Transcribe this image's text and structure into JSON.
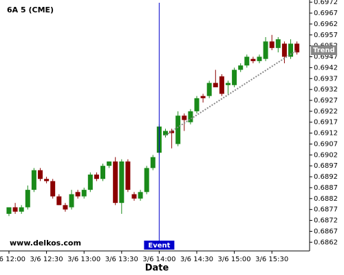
{
  "chart_data": {
    "type": "candlestick",
    "title": "6A 5 (CME)",
    "watermark": "www.delkos.com",
    "x_label": "Date",
    "categories": [
      "3/6 12:00",
      null,
      null,
      null,
      null,
      null,
      "3/6 12:30",
      null,
      null,
      null,
      null,
      null,
      "3/6 13:00",
      null,
      null,
      null,
      null,
      null,
      "3/6 13:30",
      null,
      null,
      null,
      null,
      null,
      "3/6 14:00",
      null,
      null,
      null,
      null,
      null,
      "3/6 14:30",
      null,
      null,
      null,
      null,
      null,
      "3/6 15:00",
      null,
      null,
      null,
      null,
      null,
      "3/6 15:30",
      null,
      null,
      null,
      null
    ],
    "open": [
      0.6875,
      0.6878,
      0.6876,
      0.6878,
      0.6886,
      0.6895,
      0.6891,
      0.689,
      0.6883,
      0.6879,
      0.6878,
      0.6885,
      0.6883,
      0.6886,
      0.6893,
      0.6891,
      0.6897,
      0.6899,
      0.688,
      0.6899,
      0.6884,
      0.6882,
      0.6885,
      0.6896,
      0.6903,
      0.6911,
      0.6913,
      0.6907,
      0.692,
      0.6917,
      0.6922,
      0.6929,
      0.6929,
      0.6935,
      0.6938,
      0.6934,
      0.6934,
      0.6941,
      0.6943,
      0.6946,
      0.6945,
      0.6946,
      0.6954,
      0.6951,
      0.6953,
      0.6947,
      0.6953
    ],
    "high": [
      0.6878,
      0.688,
      0.6879,
      0.6888,
      0.6896,
      0.6896,
      0.6892,
      0.6891,
      0.6884,
      0.688,
      0.6886,
      0.6886,
      0.6887,
      0.6894,
      0.6894,
      0.6898,
      0.6899,
      0.6901,
      0.69,
      0.69,
      0.6885,
      0.6886,
      0.6897,
      0.6902,
      0.6916,
      0.6914,
      0.6914,
      0.6922,
      0.6921,
      0.6923,
      0.6929,
      0.693,
      0.6936,
      0.6941,
      0.6939,
      0.6936,
      0.6942,
      0.6944,
      0.6948,
      0.6947,
      0.6948,
      0.6956,
      0.6957,
      0.6956,
      0.6954,
      0.6955,
      0.6954
    ],
    "low": [
      0.6874,
      0.6875,
      0.6875,
      0.6877,
      0.6885,
      0.689,
      0.6889,
      0.6882,
      0.6879,
      0.6876,
      0.6877,
      0.6882,
      0.6882,
      0.6885,
      0.689,
      0.689,
      0.6896,
      0.6879,
      0.6875,
      0.6885,
      0.6881,
      0.6881,
      0.6884,
      0.6895,
      0.6902,
      0.691,
      0.6905,
      0.6906,
      0.6913,
      0.6916,
      0.6921,
      0.6926,
      0.6928,
      0.6933,
      0.6929,
      0.693,
      0.6933,
      0.694,
      0.6942,
      0.6944,
      0.6944,
      0.6945,
      0.695,
      0.6949,
      0.6944,
      0.6946,
      0.6948
    ],
    "close": [
      0.6878,
      0.6876,
      0.6878,
      0.6886,
      0.6895,
      0.6891,
      0.689,
      0.6883,
      0.6879,
      0.6877,
      0.6884,
      0.6883,
      0.6886,
      0.6893,
      0.6891,
      0.6897,
      0.6899,
      0.688,
      0.6899,
      0.6886,
      0.6882,
      0.6885,
      0.6896,
      0.6901,
      0.6915,
      0.6913,
      0.6912,
      0.692,
      0.6918,
      0.6922,
      0.6928,
      0.6928,
      0.6935,
      0.6933,
      0.693,
      0.6935,
      0.6941,
      0.6943,
      0.6947,
      0.6945,
      0.6947,
      0.6954,
      0.6951,
      0.6955,
      0.6947,
      0.6953,
      0.6949
    ],
    "up_color": "#1a8a1a",
    "down_color": "#8b0000",
    "ylim": [
      0.6858,
      0.6973
    ],
    "yticks": [
      0.6862,
      0.6867,
      0.6872,
      0.6877,
      0.6882,
      0.6887,
      0.6892,
      0.6897,
      0.6902,
      0.6907,
      0.6912,
      0.6917,
      0.6922,
      0.6927,
      0.6932,
      0.6937,
      0.6942,
      0.6947,
      0.6952,
      0.6957,
      0.6962,
      0.6967,
      0.6972
    ],
    "event": {
      "label": "Event",
      "at": "3/6 14:00",
      "color": "#0000cc"
    },
    "trend": {
      "label": "Trend",
      "x": [
        25,
        46
      ],
      "values": [
        0.6911,
        0.695
      ],
      "color": "#888888"
    }
  }
}
